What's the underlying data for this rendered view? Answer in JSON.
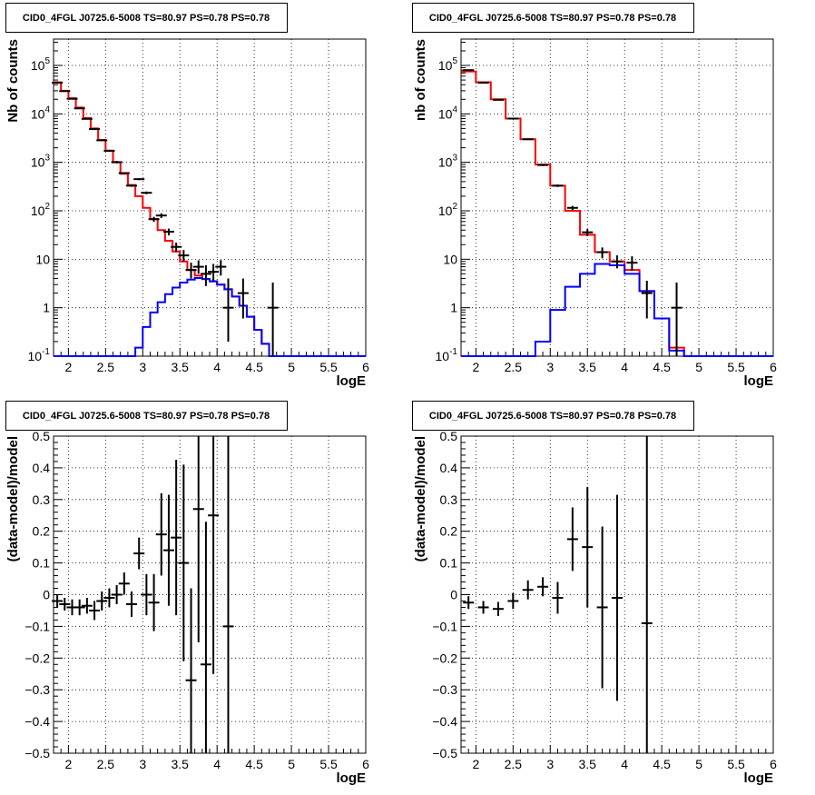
{
  "chart_data": [
    {
      "type": "line",
      "title": "CID0_4FGL J0725.6-5008 TS=80.97 PS=0.78 PS=0.78",
      "xlabel": "logE",
      "ylabel": "Nb of counts",
      "xlim": [
        1.8,
        6.0
      ],
      "ylim": [
        0.1,
        350000
      ],
      "yscale": "log",
      "grid": true,
      "x_ticks": [
        "2",
        "2.5",
        "3",
        "3.5",
        "4",
        "4.5",
        "5",
        "5.5",
        "6"
      ],
      "y_ticks": [
        "10^{-1}",
        "1",
        "10",
        "10^{2}",
        "10^{3}",
        "10^{4}",
        "10^{5}"
      ],
      "bin_edges": [
        1.8,
        1.9,
        2.0,
        2.1,
        2.2,
        2.3,
        2.4,
        2.5,
        2.6,
        2.7,
        2.8,
        2.9,
        3.0,
        3.1,
        3.2,
        3.3,
        3.4,
        3.5,
        3.6,
        3.7,
        3.8,
        3.9,
        4.0,
        4.1,
        4.2,
        4.3,
        4.4,
        4.5,
        4.6,
        4.7,
        4.8,
        4.9,
        5.0,
        5.1,
        5.2,
        5.3,
        5.4,
        5.5,
        5.6,
        5.7,
        5.8,
        5.9,
        6.0
      ],
      "series": [
        {
          "role": "total model",
          "color": "#ff0000",
          "values": [
            45000,
            30000,
            21000,
            13500,
            8200,
            5000,
            2900,
            1750,
            1000,
            580,
            340,
            200,
            115,
            68,
            40,
            24,
            14.5,
            9,
            6,
            4.6,
            3.9,
            3.5,
            3.0,
            2.4,
            1.7,
            1.1,
            0.65,
            0.35,
            0.18,
            0.1,
            0.1,
            0.1,
            0.1,
            0.1,
            0.1,
            0.1,
            0.1,
            0.1,
            0.1,
            0.1,
            0.1,
            0.1
          ]
        },
        {
          "role": "source model",
          "color": "#0000ff",
          "values": [
            0.1,
            0.1,
            0.1,
            0.1,
            0.1,
            0.1,
            0.1,
            0.1,
            0.1,
            0.1,
            0.1,
            0.15,
            0.4,
            0.8,
            1.3,
            1.9,
            2.6,
            3.3,
            3.8,
            4.1,
            3.9,
            3.5,
            3.0,
            2.4,
            1.7,
            1.1,
            0.65,
            0.35,
            0.18,
            0.1,
            0.1,
            0.1,
            0.1,
            0.1,
            0.1,
            0.1,
            0.1,
            0.1,
            0.1,
            0.1,
            0.1,
            0.1
          ]
        }
      ],
      "points": [
        {
          "x": 1.85,
          "y": 44000,
          "lo": 43500,
          "hi": 44500
        },
        {
          "x": 1.95,
          "y": 29500,
          "lo": 29100,
          "hi": 29900
        },
        {
          "x": 2.05,
          "y": 20500,
          "lo": 20200,
          "hi": 20800
        },
        {
          "x": 2.15,
          "y": 13000,
          "lo": 12800,
          "hi": 13200
        },
        {
          "x": 2.25,
          "y": 7900,
          "lo": 7700,
          "hi": 8100
        },
        {
          "x": 2.35,
          "y": 4850,
          "lo": 4700,
          "hi": 5000
        },
        {
          "x": 2.45,
          "y": 2850,
          "lo": 2750,
          "hi": 2950
        },
        {
          "x": 2.55,
          "y": 1730,
          "lo": 1650,
          "hi": 1810
        },
        {
          "x": 2.65,
          "y": 1010,
          "lo": 950,
          "hi": 1070
        },
        {
          "x": 2.75,
          "y": 600,
          "lo": 575,
          "hi": 625
        },
        {
          "x": 2.85,
          "y": 330,
          "lo": 312,
          "hi": 348
        },
        {
          "x": 2.95,
          "y": 450,
          "lo": 430,
          "hi": 470
        },
        {
          "x": 3.05,
          "y": 235,
          "lo": 220,
          "hi": 250
        },
        {
          "x": 3.15,
          "y": 67,
          "lo": 59,
          "hi": 75
        },
        {
          "x": 3.25,
          "y": 80,
          "lo": 71,
          "hi": 89
        },
        {
          "x": 3.35,
          "y": 37,
          "lo": 31,
          "hi": 43
        },
        {
          "x": 3.45,
          "y": 18,
          "lo": 14,
          "hi": 22
        },
        {
          "x": 3.55,
          "y": 12,
          "lo": 9,
          "hi": 15.5
        },
        {
          "x": 3.65,
          "y": 6,
          "lo": 4,
          "hi": 8.5
        },
        {
          "x": 3.75,
          "y": 7,
          "lo": 5,
          "hi": 9.5
        },
        {
          "x": 3.85,
          "y": 5,
          "lo": 2.8,
          "hi": 7.5
        },
        {
          "x": 3.95,
          "y": 5.5,
          "lo": 3.5,
          "hi": 8
        },
        {
          "x": 4.05,
          "y": 7,
          "lo": 4.6,
          "hi": 9.6
        },
        {
          "x": 4.15,
          "y": 1,
          "lo": 0.2,
          "hi": 4
        },
        {
          "x": 4.35,
          "y": 2,
          "lo": 0.6,
          "hi": 4
        },
        {
          "x": 4.75,
          "y": 1,
          "lo": 0.1,
          "hi": 3.3
        }
      ]
    },
    {
      "type": "line",
      "title": "CID0_4FGL J0725.6-5008 TS=80.97 PS=0.78 PS=0.78",
      "xlabel": "logE",
      "ylabel": "nb of counts",
      "xlim": [
        1.8,
        6.0
      ],
      "ylim": [
        0.1,
        350000
      ],
      "yscale": "log",
      "grid": true,
      "x_ticks": [
        "2",
        "2.5",
        "3",
        "3.5",
        "4",
        "4.5",
        "5",
        "5.5",
        "6"
      ],
      "y_ticks": [
        "10^{-1}",
        "1",
        "10",
        "10^{2}",
        "10^{3}",
        "10^{4}",
        "10^{5}"
      ],
      "bin_edges": [
        1.8,
        2.0,
        2.2,
        2.4,
        2.6,
        2.8,
        3.0,
        3.2,
        3.4,
        3.6,
        3.8,
        4.0,
        4.2,
        4.4,
        4.6,
        4.8,
        5.0,
        5.2,
        5.4,
        5.6,
        5.8,
        6.0
      ],
      "series": [
        {
          "role": "total model",
          "color": "#ff0000",
          "values": [
            75000,
            45000,
            20000,
            8000,
            3000,
            900,
            330,
            100,
            32,
            14,
            9,
            6,
            2.2,
            0.6,
            0.15,
            0.1,
            0.1,
            0.1,
            0.1,
            0.1,
            0.1
          ]
        },
        {
          "role": "source model",
          "color": "#0000ff",
          "values": [
            0.1,
            0.1,
            0.1,
            0.1,
            0.1,
            0.2,
            0.9,
            2.7,
            5,
            8,
            7.5,
            5,
            2.2,
            0.6,
            0.13,
            0.1,
            0.1,
            0.1,
            0.1,
            0.1,
            0.1
          ]
        }
      ],
      "points": [
        {
          "x": 1.9,
          "y": 80000,
          "lo": 79000,
          "hi": 81000
        },
        {
          "x": 2.1,
          "y": 44000,
          "lo": 43500,
          "hi": 44500
        },
        {
          "x": 2.3,
          "y": 19500,
          "lo": 19200,
          "hi": 19800
        },
        {
          "x": 2.5,
          "y": 8000,
          "lo": 7800,
          "hi": 8200
        },
        {
          "x": 2.7,
          "y": 3000,
          "lo": 2920,
          "hi": 3080
        },
        {
          "x": 2.9,
          "y": 880,
          "lo": 840,
          "hi": 920
        },
        {
          "x": 3.1,
          "y": 330,
          "lo": 310,
          "hi": 350
        },
        {
          "x": 3.3,
          "y": 115,
          "lo": 104,
          "hi": 126
        },
        {
          "x": 3.5,
          "y": 36,
          "lo": 30,
          "hi": 42
        },
        {
          "x": 3.7,
          "y": 14,
          "lo": 10.5,
          "hi": 17.5
        },
        {
          "x": 3.9,
          "y": 9,
          "lo": 6.5,
          "hi": 12
        },
        {
          "x": 4.1,
          "y": 8.5,
          "lo": 5.8,
          "hi": 11.5
        },
        {
          "x": 4.3,
          "y": 2,
          "lo": 0.6,
          "hi": 3.6
        },
        {
          "x": 4.7,
          "y": 1,
          "lo": 0.1,
          "hi": 3.3
        }
      ]
    },
    {
      "type": "scatter",
      "title": "CID0_4FGL J0725.6-5008 TS=80.97 PS=0.78 PS=0.78",
      "xlabel": "logE",
      "ylabel": "(data-model)/model",
      "xlim": [
        1.8,
        6.0
      ],
      "ylim": [
        -0.5,
        0.5
      ],
      "grid": true,
      "x_ticks": [
        "2",
        "2.5",
        "3",
        "3.5",
        "4",
        "4.5",
        "5",
        "5.5",
        "6"
      ],
      "y_ticks": [
        "−0.5",
        "−0.4",
        "−0.3",
        "−0.2",
        "−0.1",
        "0",
        "0.1",
        "0.2",
        "0.3",
        "0.4",
        "0.5"
      ],
      "points": [
        {
          "x": 1.85,
          "y": -0.02,
          "err": 0.02
        },
        {
          "x": 1.95,
          "y": -0.03,
          "err": 0.02
        },
        {
          "x": 2.05,
          "y": -0.04,
          "err": 0.025
        },
        {
          "x": 2.15,
          "y": -0.04,
          "err": 0.025
        },
        {
          "x": 2.25,
          "y": -0.035,
          "err": 0.025
        },
        {
          "x": 2.35,
          "y": -0.05,
          "err": 0.03
        },
        {
          "x": 2.45,
          "y": -0.02,
          "err": 0.03
        },
        {
          "x": 2.55,
          "y": -0.01,
          "err": 0.03
        },
        {
          "x": 2.65,
          "y": 0.0,
          "err": 0.03
        },
        {
          "x": 2.75,
          "y": 0.035,
          "err": 0.035
        },
        {
          "x": 2.85,
          "y": -0.03,
          "err": 0.04
        },
        {
          "x": 2.95,
          "y": 0.13,
          "err": 0.05
        },
        {
          "x": 3.05,
          "y": 0.0,
          "err": 0.065
        },
        {
          "x": 3.15,
          "y": -0.025,
          "err": 0.09
        },
        {
          "x": 3.25,
          "y": 0.19,
          "err": 0.13
        },
        {
          "x": 3.35,
          "y": 0.14,
          "err": 0.175
        },
        {
          "x": 3.45,
          "y": 0.18,
          "err": 0.245
        },
        {
          "x": 3.55,
          "y": 0.1,
          "err": 0.31
        },
        {
          "x": 3.65,
          "y": -0.27,
          "err": 0.29
        },
        {
          "x": 3.75,
          "y": 0.27,
          "err": 0.42
        },
        {
          "x": 3.85,
          "y": -0.22,
          "err": 0.45
        },
        {
          "x": 3.95,
          "y": 0.25,
          "err": 0.5
        },
        {
          "x": 4.15,
          "y": -0.1,
          "err": 1.0
        }
      ]
    },
    {
      "type": "scatter",
      "title": "CID0_4FGL J0725.6-5008 TS=80.97 PS=0.78 PS=0.78",
      "xlabel": "logE",
      "ylabel": "(data-model)/model",
      "xlim": [
        1.8,
        6.0
      ],
      "ylim": [
        -0.5,
        0.5
      ],
      "grid": true,
      "x_ticks": [
        "2",
        "2.5",
        "3",
        "3.5",
        "4",
        "4.5",
        "5",
        "5.5",
        "6"
      ],
      "y_ticks": [
        "−0.5",
        "−0.4",
        "−0.3",
        "−0.2",
        "−0.1",
        "0",
        "0.1",
        "0.2",
        "0.3",
        "0.4",
        "0.5"
      ],
      "points": [
        {
          "x": 1.9,
          "y": -0.025,
          "err": 0.02
        },
        {
          "x": 2.1,
          "y": -0.04,
          "err": 0.02
        },
        {
          "x": 2.3,
          "y": -0.045,
          "err": 0.022
        },
        {
          "x": 2.5,
          "y": -0.02,
          "err": 0.025
        },
        {
          "x": 2.7,
          "y": 0.015,
          "err": 0.03
        },
        {
          "x": 2.9,
          "y": 0.025,
          "err": 0.03
        },
        {
          "x": 3.1,
          "y": -0.01,
          "err": 0.05
        },
        {
          "x": 3.3,
          "y": 0.175,
          "err": 0.1
        },
        {
          "x": 3.5,
          "y": 0.15,
          "err": 0.19
        },
        {
          "x": 3.7,
          "y": -0.04,
          "err": 0.255
        },
        {
          "x": 3.9,
          "y": -0.01,
          "err": 0.325
        },
        {
          "x": 4.3,
          "y": -0.09,
          "err": 1.0
        }
      ]
    }
  ]
}
